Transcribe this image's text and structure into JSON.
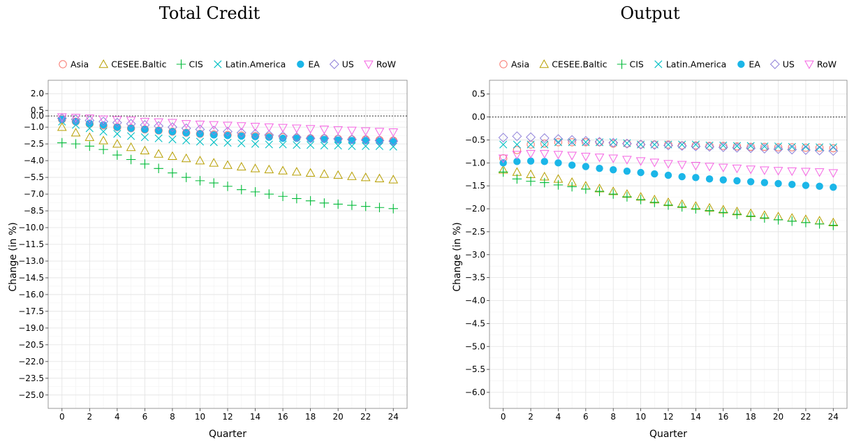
{
  "chart_data": [
    {
      "type": "scatter",
      "title": "Total Credit",
      "xlabel": "Quarter",
      "ylabel": "Change (in %)",
      "xlim": [
        -1,
        25
      ],
      "ylim": [
        -26.2,
        3.2
      ],
      "x_ticks": [
        0,
        2,
        4,
        6,
        8,
        10,
        12,
        14,
        16,
        18,
        20,
        22,
        24
      ],
      "y_ticks": [
        2.0,
        0.5,
        0.0,
        -1.0,
        -2.5,
        -4.0,
        -5.5,
        -7.0,
        -8.5,
        -10.0,
        -11.5,
        -13.0,
        -14.5,
        -16.0,
        -17.5,
        -19.0,
        -20.5,
        -22.0,
        -23.5,
        -25.0
      ],
      "y_tick_labels": [
        "2.0",
        "0.5",
        "0.0",
        "−1.0",
        "−2.5",
        "−4.0",
        "−5.5",
        "−7.0",
        "−8.5",
        "−10.0",
        "−11.5",
        "−13.0",
        "−14.5",
        "−16.0",
        "−17.5",
        "−19.0",
        "−20.5",
        "−22.0",
        "−23.5",
        "−25.0"
      ],
      "reference_line_y": 0,
      "grid": true,
      "legend_position": "top",
      "x": [
        0,
        1,
        2,
        3,
        4,
        5,
        6,
        7,
        8,
        9,
        10,
        11,
        12,
        13,
        14,
        15,
        16,
        17,
        18,
        19,
        20,
        21,
        22,
        23,
        24
      ],
      "series": [
        {
          "name": "Asia",
          "marker": "circle-open",
          "color": "#F8766D",
          "values": [
            -0.3,
            -0.5,
            -0.7,
            -0.85,
            -1.0,
            -1.1,
            -1.2,
            -1.3,
            -1.4,
            -1.5,
            -1.6,
            -1.65,
            -1.7,
            -1.75,
            -1.8,
            -1.85,
            -1.9,
            -1.95,
            -2.0,
            -2.0,
            -2.05,
            -2.1,
            -2.1,
            -2.15,
            -2.2
          ]
        },
        {
          "name": "CESEE.Baltic",
          "marker": "triangle-up-open",
          "color": "#B79F00",
          "values": [
            -1.0,
            -1.5,
            -1.9,
            -2.2,
            -2.5,
            -2.8,
            -3.1,
            -3.4,
            -3.6,
            -3.8,
            -4.0,
            -4.2,
            -4.4,
            -4.55,
            -4.7,
            -4.8,
            -4.9,
            -5.0,
            -5.1,
            -5.2,
            -5.3,
            -5.4,
            -5.5,
            -5.6,
            -5.7
          ]
        },
        {
          "name": "CIS",
          "marker": "plus",
          "color": "#00BA38",
          "values": [
            -2.4,
            -2.5,
            -2.7,
            -3.0,
            -3.5,
            -3.9,
            -4.3,
            -4.7,
            -5.1,
            -5.5,
            -5.8,
            -6.0,
            -6.3,
            -6.6,
            -6.8,
            -7.0,
            -7.2,
            -7.4,
            -7.6,
            -7.8,
            -7.9,
            -8.0,
            -8.1,
            -8.2,
            -8.3
          ]
        },
        {
          "name": "Latin.America",
          "marker": "x",
          "color": "#00BFC4",
          "values": [
            -0.5,
            -0.8,
            -1.1,
            -1.4,
            -1.6,
            -1.8,
            -1.9,
            -2.0,
            -2.1,
            -2.2,
            -2.3,
            -2.35,
            -2.4,
            -2.45,
            -2.5,
            -2.55,
            -2.55,
            -2.6,
            -2.6,
            -2.65,
            -2.65,
            -2.7,
            -2.7,
            -2.7,
            -2.75
          ]
        },
        {
          "name": "EA",
          "marker": "circle-filled",
          "color": "#1BB6E8",
          "values": [
            -0.3,
            -0.5,
            -0.65,
            -0.8,
            -1.0,
            -1.1,
            -1.2,
            -1.3,
            -1.4,
            -1.5,
            -1.6,
            -1.7,
            -1.75,
            -1.8,
            -1.85,
            -1.9,
            -2.0,
            -2.0,
            -2.05,
            -2.1,
            -2.15,
            -2.2,
            -2.2,
            -2.25,
            -2.3
          ]
        },
        {
          "name": "US",
          "marker": "diamond-open",
          "color": "#8F80D9",
          "values": [
            -0.2,
            -0.3,
            -0.4,
            -0.5,
            -0.6,
            -0.7,
            -0.8,
            -0.9,
            -1.0,
            -1.1,
            -1.2,
            -1.3,
            -1.4,
            -1.5,
            -1.6,
            -1.7,
            -1.8,
            -1.9,
            -2.0,
            -2.0,
            -2.05,
            -2.1,
            -2.15,
            -2.2,
            -2.25
          ]
        },
        {
          "name": "RoW",
          "marker": "triangle-down-open",
          "color": "#F564E3",
          "values": [
            -0.1,
            -0.15,
            -0.2,
            -0.3,
            -0.35,
            -0.4,
            -0.5,
            -0.55,
            -0.6,
            -0.7,
            -0.75,
            -0.8,
            -0.85,
            -0.9,
            -0.95,
            -1.0,
            -1.05,
            -1.1,
            -1.15,
            -1.2,
            -1.25,
            -1.3,
            -1.35,
            -1.4,
            -1.45
          ]
        }
      ]
    },
    {
      "type": "scatter",
      "title": "Output",
      "xlabel": "Quarter",
      "ylabel": "Change (in %)",
      "xlim": [
        -1,
        25
      ],
      "ylim": [
        -6.35,
        0.8
      ],
      "x_ticks": [
        0,
        2,
        4,
        6,
        8,
        10,
        12,
        14,
        16,
        18,
        20,
        22,
        24
      ],
      "y_ticks": [
        0.5,
        0.0,
        -0.5,
        -1.0,
        -1.5,
        -2.0,
        -2.5,
        -3.0,
        -3.5,
        -4.0,
        -4.5,
        -5.0,
        -5.5,
        -6.0
      ],
      "y_tick_labels": [
        "0.5",
        "0.0",
        "−0.5",
        "−1.0",
        "−1.5",
        "−2.0",
        "−2.5",
        "−3.0",
        "−3.5",
        "−4.0",
        "−4.5",
        "−5.0",
        "−5.5",
        "−6.0"
      ],
      "reference_line_y": 0,
      "grid": true,
      "legend_position": "top",
      "x": [
        0,
        1,
        2,
        3,
        4,
        5,
        6,
        7,
        8,
        9,
        10,
        11,
        12,
        13,
        14,
        15,
        16,
        17,
        18,
        19,
        20,
        21,
        22,
        23,
        24
      ],
      "series": [
        {
          "name": "Asia",
          "marker": "circle-open",
          "color": "#F8766D",
          "values": [
            -0.9,
            -0.72,
            -0.6,
            -0.58,
            -0.55,
            -0.55,
            -0.55,
            -0.55,
            -0.58,
            -0.58,
            -0.6,
            -0.6,
            -0.6,
            -0.62,
            -0.62,
            -0.63,
            -0.63,
            -0.64,
            -0.65,
            -0.65,
            -0.66,
            -0.66,
            -0.67,
            -0.67,
            -0.68
          ]
        },
        {
          "name": "CESEE.Baltic",
          "marker": "triangle-up-open",
          "color": "#B79F00",
          "values": [
            -1.15,
            -1.2,
            -1.25,
            -1.3,
            -1.35,
            -1.42,
            -1.5,
            -1.56,
            -1.62,
            -1.68,
            -1.74,
            -1.8,
            -1.86,
            -1.9,
            -1.94,
            -1.98,
            -2.02,
            -2.06,
            -2.1,
            -2.14,
            -2.17,
            -2.2,
            -2.23,
            -2.26,
            -2.3
          ]
        },
        {
          "name": "CIS",
          "marker": "plus",
          "color": "#00BA38",
          "values": [
            -1.2,
            -1.35,
            -1.4,
            -1.43,
            -1.48,
            -1.52,
            -1.57,
            -1.62,
            -1.68,
            -1.74,
            -1.8,
            -1.86,
            -1.92,
            -1.96,
            -2.0,
            -2.04,
            -2.08,
            -2.12,
            -2.16,
            -2.2,
            -2.24,
            -2.27,
            -2.3,
            -2.33,
            -2.36
          ]
        },
        {
          "name": "Latin.America",
          "marker": "x",
          "color": "#00BFC4",
          "values": [
            -0.6,
            -0.6,
            -0.6,
            -0.6,
            -0.55,
            -0.55,
            -0.55,
            -0.55,
            -0.55,
            -0.57,
            -0.6,
            -0.6,
            -0.6,
            -0.6,
            -0.6,
            -0.62,
            -0.62,
            -0.63,
            -0.63,
            -0.64,
            -0.64,
            -0.65,
            -0.65,
            -0.66,
            -0.66
          ]
        },
        {
          "name": "EA",
          "marker": "circle-filled",
          "color": "#1BB6E8",
          "values": [
            -1.0,
            -0.97,
            -0.96,
            -0.97,
            -1.0,
            -1.05,
            -1.08,
            -1.12,
            -1.15,
            -1.18,
            -1.21,
            -1.24,
            -1.27,
            -1.3,
            -1.32,
            -1.35,
            -1.37,
            -1.39,
            -1.41,
            -1.43,
            -1.45,
            -1.47,
            -1.49,
            -1.51,
            -1.53
          ]
        },
        {
          "name": "US",
          "marker": "diamond-open",
          "color": "#8F80D9",
          "values": [
            -0.45,
            -0.42,
            -0.44,
            -0.46,
            -0.48,
            -0.5,
            -0.52,
            -0.54,
            -0.56,
            -0.58,
            -0.6,
            -0.61,
            -0.62,
            -0.63,
            -0.64,
            -0.65,
            -0.66,
            -0.67,
            -0.68,
            -0.69,
            -0.7,
            -0.71,
            -0.72,
            -0.73,
            -0.74
          ]
        },
        {
          "name": "RoW",
          "marker": "triangle-down-open",
          "color": "#F564E3",
          "values": [
            -0.9,
            -0.82,
            -0.8,
            -0.8,
            -0.82,
            -0.84,
            -0.86,
            -0.88,
            -0.9,
            -0.93,
            -0.96,
            -0.99,
            -1.02,
            -1.04,
            -1.06,
            -1.08,
            -1.1,
            -1.12,
            -1.14,
            -1.16,
            -1.17,
            -1.18,
            -1.19,
            -1.2,
            -1.22
          ]
        }
      ]
    }
  ]
}
